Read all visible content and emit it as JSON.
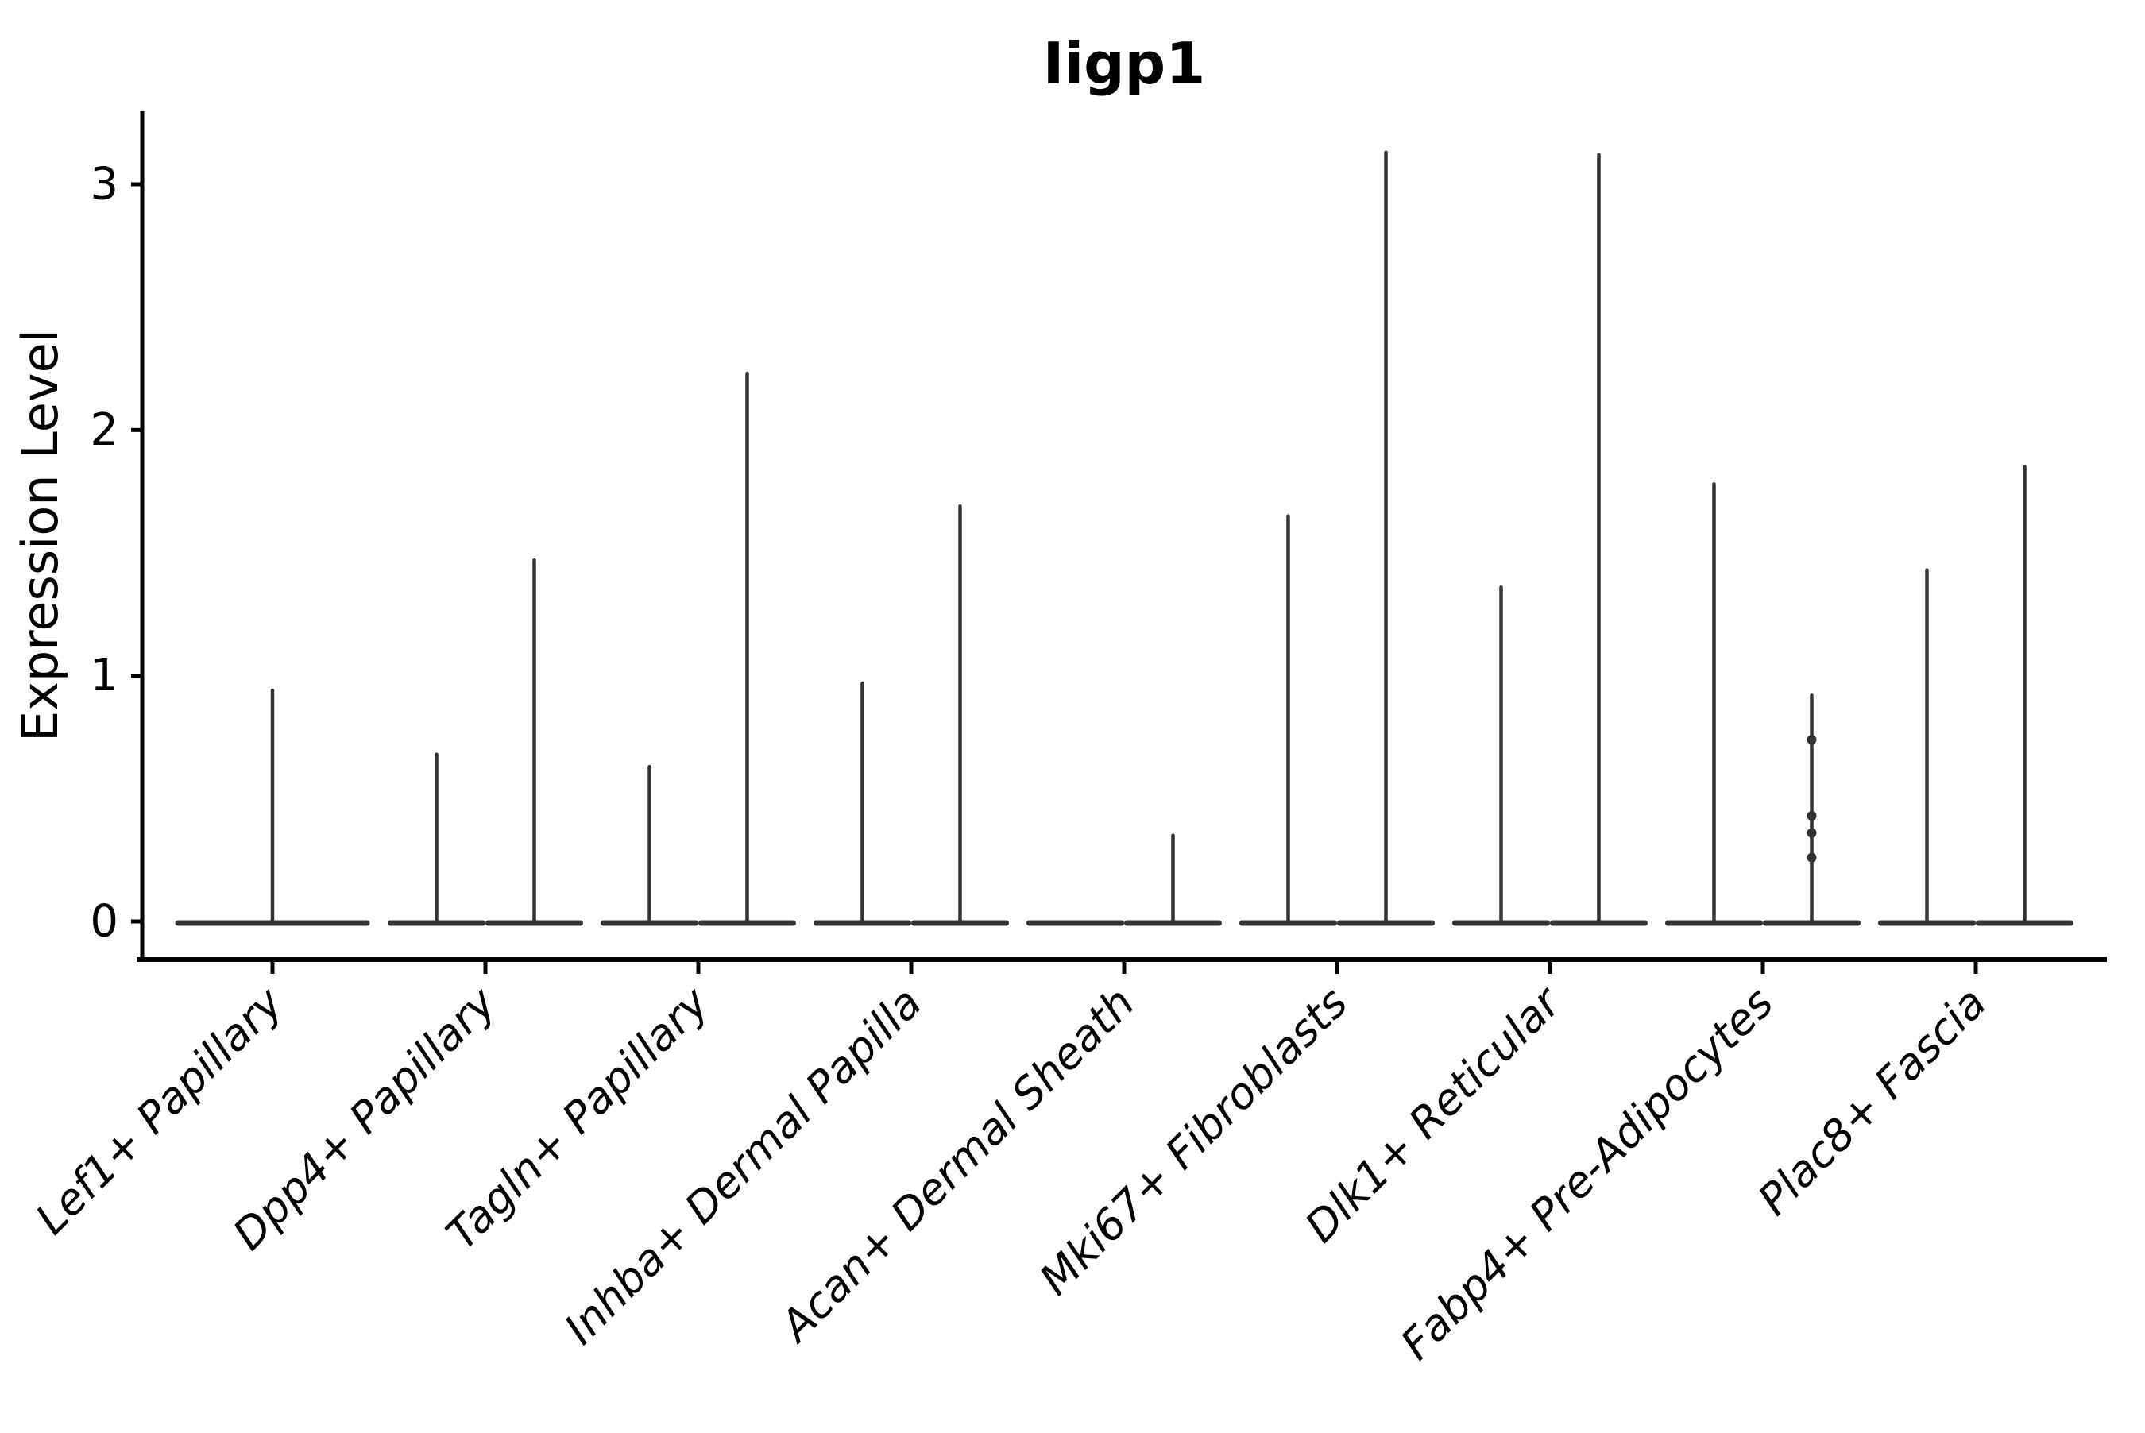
{
  "chart_data": {
    "type": "violin",
    "title": "Iigp1",
    "ylabel": "Expression Level",
    "xlabel": "",
    "ylim": [
      0,
      3.3
    ],
    "yticks": [
      0,
      1,
      2,
      3
    ],
    "grid": false,
    "legend": "none",
    "categories": [
      {
        "label": "Lef1+ Papillary",
        "violins": [
          {
            "position": "center",
            "max": 0.94
          }
        ]
      },
      {
        "label": "Dpp4+ Papillary",
        "violins": [
          {
            "position": "left",
            "max": 0.68
          },
          {
            "position": "right",
            "max": 1.47
          }
        ]
      },
      {
        "label": "Tagln+ Papillary",
        "violins": [
          {
            "position": "left",
            "max": 0.63
          },
          {
            "position": "right",
            "max": 2.23
          }
        ]
      },
      {
        "label": "Inhba+ Dermal Papilla",
        "violins": [
          {
            "position": "left",
            "max": 0.97
          },
          {
            "position": "right",
            "max": 1.69
          }
        ]
      },
      {
        "label": "Acan+ Dermal Sheath",
        "violins": [
          {
            "position": "left",
            "max": 0
          },
          {
            "position": "right",
            "max": 0.35
          }
        ]
      },
      {
        "label": "Mki67+ Fibroblasts",
        "violins": [
          {
            "position": "left",
            "max": 1.65
          },
          {
            "position": "right",
            "max": 3.13
          }
        ]
      },
      {
        "label": "Dlk1+ Reticular",
        "violins": [
          {
            "position": "left",
            "max": 1.36
          },
          {
            "position": "right",
            "max": 3.12
          }
        ]
      },
      {
        "label": "Fabp4+ Pre-Adipocytes",
        "violins": [
          {
            "position": "left",
            "max": 1.78
          },
          {
            "position": "right",
            "max": 0.92,
            "dots": [
              0.74,
              0.43,
              0.36,
              0.26
            ]
          }
        ]
      },
      {
        "label": "Plac8+ Fascia",
        "violins": [
          {
            "position": "left",
            "max": 1.43
          },
          {
            "position": "right",
            "max": 1.85
          }
        ]
      }
    ],
    "colors": {
      "violin": "#333333",
      "axis": "#000000",
      "text": "#000000",
      "background": "#ffffff"
    }
  }
}
